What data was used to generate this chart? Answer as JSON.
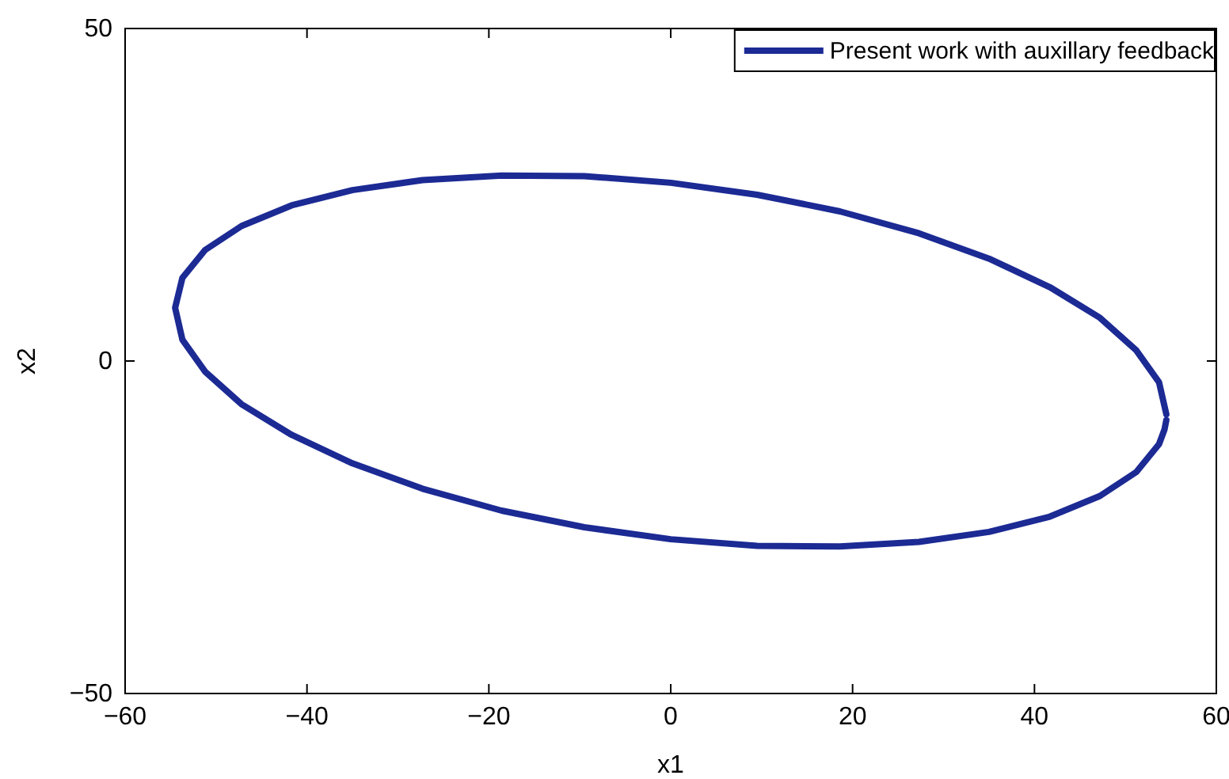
{
  "chart_data": {
    "type": "line",
    "xlabel": "x1",
    "ylabel": "x2",
    "xlim": [
      -60,
      60
    ],
    "ylim": [
      -50,
      50
    ],
    "xticks": [
      {
        "value": -60,
        "label": "−60"
      },
      {
        "value": -40,
        "label": "−40"
      },
      {
        "value": -20,
        "label": "−20"
      },
      0,
      20,
      40,
      60
    ],
    "yticks": [
      {
        "value": -50,
        "label": "−50"
      },
      0,
      50
    ],
    "grid": false,
    "legend": "top right",
    "marker": "none",
    "line_style": "solid",
    "series": [
      {
        "name": "Present work with auxillary feedback",
        "color": "#1c2a94",
        "x": [
          54.5,
          53.7,
          51.2,
          47.2,
          41.7,
          35.0,
          27.3,
          18.6,
          9.5,
          0,
          -9.5,
          -18.6,
          -27.3,
          -35.0,
          -41.7,
          -47.2,
          -51.2,
          -53.7,
          -54.5,
          -53.7,
          -51.2,
          -47.2,
          -41.7,
          -35.0,
          -27.3,
          -18.6,
          -9.5,
          0,
          9.5,
          18.6,
          27.3,
          35.0,
          41.7,
          47.2,
          51.2,
          53.7,
          54.3,
          54.5
        ],
        "values": [
          -8,
          -3.2,
          1.6,
          6.5,
          11.1,
          15.4,
          19.2,
          22.5,
          25.0,
          26.8,
          27.8,
          27.9,
          27.2,
          25.7,
          23.4,
          20.3,
          16.7,
          12.5,
          8,
          3.2,
          -1.6,
          -6.5,
          -11.1,
          -15.4,
          -19.2,
          -22.5,
          -25.0,
          -26.8,
          -27.8,
          -27.9,
          -27.2,
          -25.7,
          -23.4,
          -20.3,
          -16.7,
          -12.5,
          -10.3,
          -8.9
        ]
      }
    ]
  }
}
